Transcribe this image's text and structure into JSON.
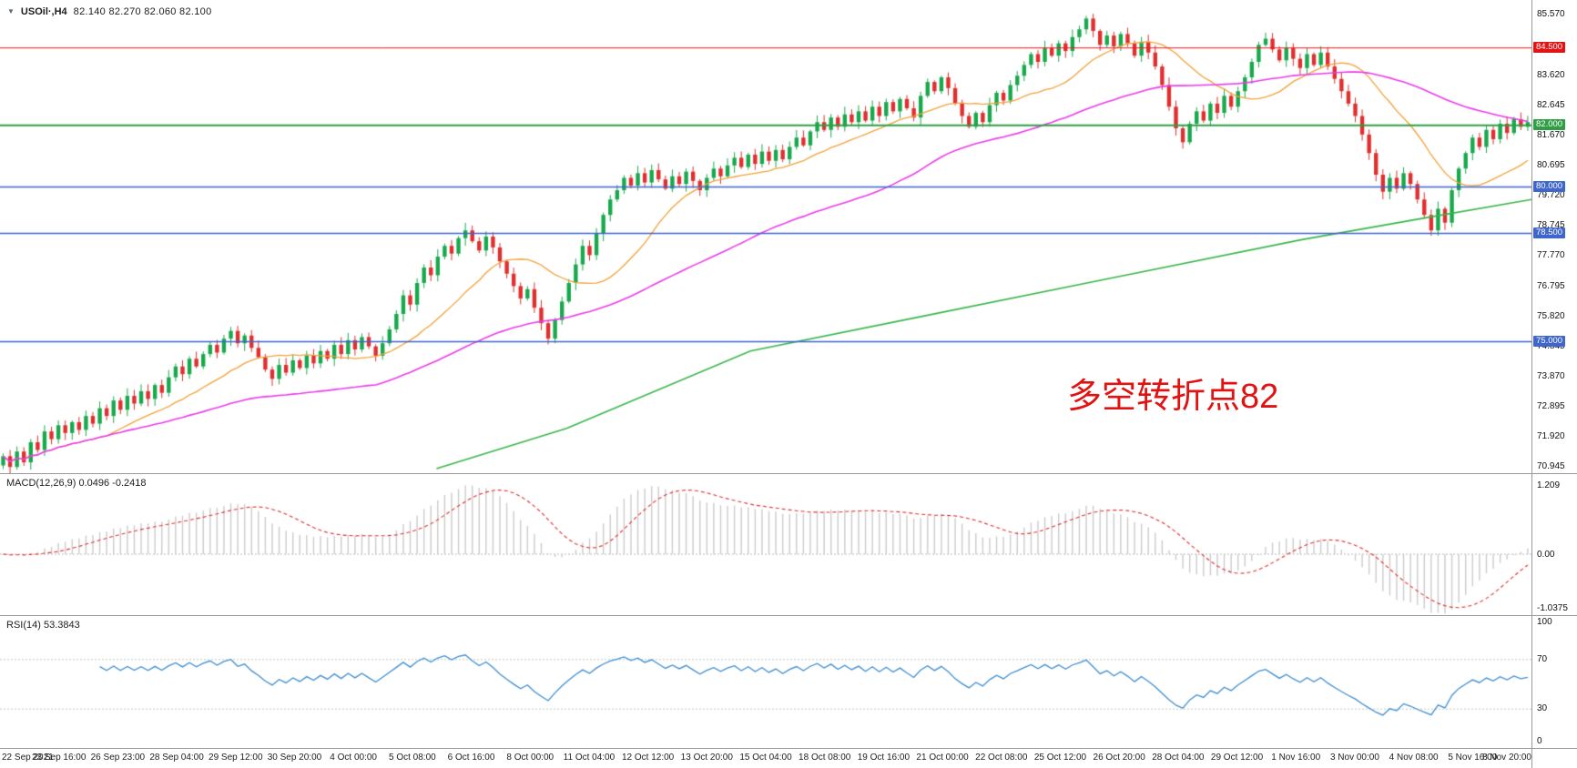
{
  "header": {
    "dropdown_icon": "▼",
    "symbol": "USOil·,H4",
    "ohlc": "82.140 82.270 82.060 82.100"
  },
  "annotation": {
    "text": "多空转折点82",
    "color": "#e01212"
  },
  "chart_data": {
    "type": "candlestick",
    "symbol": "USOil",
    "timeframe": "H4",
    "ohlc_current": {
      "open": 82.14,
      "high": 82.27,
      "low": 82.06,
      "close": 82.1
    },
    "colors": {
      "up": "#19a94d",
      "down": "#e12f2f",
      "ma_orange": "#f2a23a",
      "ma_magenta": "#ea3bea",
      "ma_green": "#39b54a",
      "macd_hist": "#cbcbcb",
      "macd_signal": "#e03030",
      "rsi_line": "#3e8ed0",
      "level_red": "#f21515",
      "level_green": "#2f9e45",
      "level_blue": "#3f66cc"
    },
    "main": {
      "ylim": [
        70.75,
        86.05
      ],
      "yticks": [
        "85.570",
        "83.620",
        "82.645",
        "81.670",
        "80.695",
        "79.720",
        "78.745",
        "77.770",
        "76.795",
        "75.820",
        "74.845",
        "73.870",
        "72.895",
        "71.920",
        "70.945"
      ],
      "levels": [
        {
          "price": 84.5,
          "color": "#f21515",
          "width": 1,
          "badge": "84.500",
          "badge_bg": "#e31414"
        },
        {
          "price": 82.0,
          "color": "#2f9e45",
          "width": 2,
          "badge": "82.000",
          "badge_bg": "#2f9e45"
        },
        {
          "price": 80.0,
          "color": "#3f66cc",
          "width": 1.5,
          "badge": "80.000",
          "badge_bg": "#3f66cc"
        },
        {
          "price": 78.5,
          "color": "#3f66cc",
          "width": 1.5,
          "badge": "78.500",
          "badge_bg": "#3f66cc"
        },
        {
          "price": 75.0,
          "color": "#3f66cc",
          "width": 1.5,
          "badge": "75.000",
          "badge_bg": "#3f66cc"
        }
      ],
      "first_open": 71.0,
      "closes": [
        71.3,
        70.95,
        71.45,
        71.1,
        71.75,
        71.5,
        72.1,
        71.85,
        72.3,
        72.05,
        72.4,
        72.15,
        72.6,
        72.35,
        72.85,
        72.6,
        73.1,
        72.8,
        73.25,
        73.0,
        73.4,
        73.15,
        73.6,
        73.35,
        73.85,
        74.2,
        73.95,
        74.45,
        74.2,
        74.6,
        74.9,
        74.65,
        75.1,
        75.35,
        74.95,
        75.2,
        74.8,
        74.5,
        74.1,
        73.8,
        74.25,
        74.0,
        74.4,
        74.15,
        74.55,
        74.3,
        74.7,
        74.45,
        74.9,
        74.6,
        75.05,
        74.75,
        75.15,
        74.85,
        74.55,
        74.95,
        75.4,
        75.9,
        76.5,
        76.2,
        76.9,
        77.4,
        77.15,
        77.75,
        78.1,
        77.85,
        78.35,
        78.6,
        78.25,
        77.95,
        78.4,
        78.05,
        77.6,
        77.2,
        76.8,
        76.4,
        76.7,
        76.1,
        75.6,
        75.1,
        75.7,
        76.3,
        76.9,
        77.5,
        78.1,
        77.8,
        78.5,
        79.1,
        79.6,
        79.9,
        80.3,
        80.05,
        80.45,
        80.15,
        80.55,
        80.25,
        79.95,
        80.35,
        80.1,
        80.5,
        80.2,
        79.9,
        80.3,
        80.6,
        80.35,
        80.7,
        80.95,
        80.65,
        81.05,
        80.75,
        81.15,
        80.85,
        81.2,
        80.9,
        81.3,
        81.6,
        81.35,
        81.8,
        82.1,
        81.85,
        82.25,
        81.95,
        82.35,
        82.1,
        82.45,
        82.15,
        82.6,
        82.3,
        82.75,
        82.45,
        82.85,
        82.55,
        82.25,
        82.95,
        83.4,
        83.1,
        83.55,
        83.2,
        82.7,
        82.3,
        81.95,
        82.4,
        82.1,
        82.65,
        83.05,
        82.8,
        83.3,
        83.6,
        83.95,
        84.3,
        84.05,
        84.5,
        84.25,
        84.65,
        84.4,
        84.85,
        85.1,
        85.45,
        85.05,
        84.6,
        84.9,
        84.55,
        84.95,
        84.65,
        84.25,
        84.7,
        84.35,
        83.9,
        83.3,
        82.6,
        81.9,
        81.45,
        82.05,
        82.45,
        82.15,
        82.7,
        82.4,
        82.95,
        82.6,
        83.1,
        83.55,
        84.05,
        84.6,
        84.8,
        84.45,
        84.1,
        84.5,
        84.15,
        83.85,
        84.3,
        83.95,
        84.35,
        83.9,
        83.5,
        83.1,
        82.7,
        82.3,
        81.7,
        81.1,
        80.4,
        79.85,
        80.3,
        79.95,
        80.45,
        80.1,
        79.6,
        79.1,
        78.6,
        79.3,
        78.85,
        79.9,
        80.6,
        81.1,
        81.6,
        81.3,
        81.85,
        81.55,
        82.05,
        81.75,
        82.2,
        81.95,
        82.1
      ],
      "ma": {
        "orange_period": 16,
        "magenta_period": 55,
        "green_anchors": [
          [
            0.285,
            70.9
          ],
          [
            0.37,
            72.2
          ],
          [
            0.49,
            74.7
          ],
          [
            0.6,
            75.8
          ],
          [
            0.72,
            77.0
          ],
          [
            0.85,
            78.3
          ],
          [
            0.93,
            79.0
          ],
          [
            1.0,
            79.6
          ]
        ]
      }
    },
    "macd": {
      "label": "MACD(12,26,9) 0.0496 -0.2418",
      "params": [
        12,
        26,
        9
      ],
      "value": 0.0496,
      "signal_value": -0.2418,
      "ylim": [
        -1.065,
        1.415
      ],
      "yticks": [
        {
          "label": "1.209",
          "value": 1.209
        },
        {
          "label": "0.00",
          "value": 0
        },
        {
          "label": "-1.0375",
          "value": -1.0375
        }
      ]
    },
    "rsi": {
      "label": "RSI(14) 53.3843",
      "period": 14,
      "value": 53.3843,
      "levels": [
        70,
        30
      ],
      "yticks": [
        {
          "label": "100",
          "value": 100
        },
        {
          "label": "70",
          "value": 70
        },
        {
          "label": "30",
          "value": 30
        },
        {
          "label": "0",
          "value": 0
        }
      ]
    },
    "xlabels": [
      "22 Sep 2021",
      "23 Sep 16:00",
      "26 Sep 23:00",
      "28 Sep 04:00",
      "29 Sep 12:00",
      "30 Sep 20:00",
      "4 Oct 00:00",
      "5 Oct 08:00",
      "6 Oct 16:00",
      "8 Oct 00:00",
      "11 Oct 04:00",
      "12 Oct 12:00",
      "13 Oct 20:00",
      "15 Oct 04:00",
      "18 Oct 08:00",
      "19 Oct 16:00",
      "21 Oct 00:00",
      "22 Oct 08:00",
      "25 Oct 12:00",
      "26 Oct 20:00",
      "28 Oct 04:00",
      "29 Oct 12:00",
      "1 Nov 16:00",
      "3 Nov 00:00",
      "4 Nov 08:00",
      "5 Nov 16:00",
      "8 Nov 20:00"
    ]
  }
}
